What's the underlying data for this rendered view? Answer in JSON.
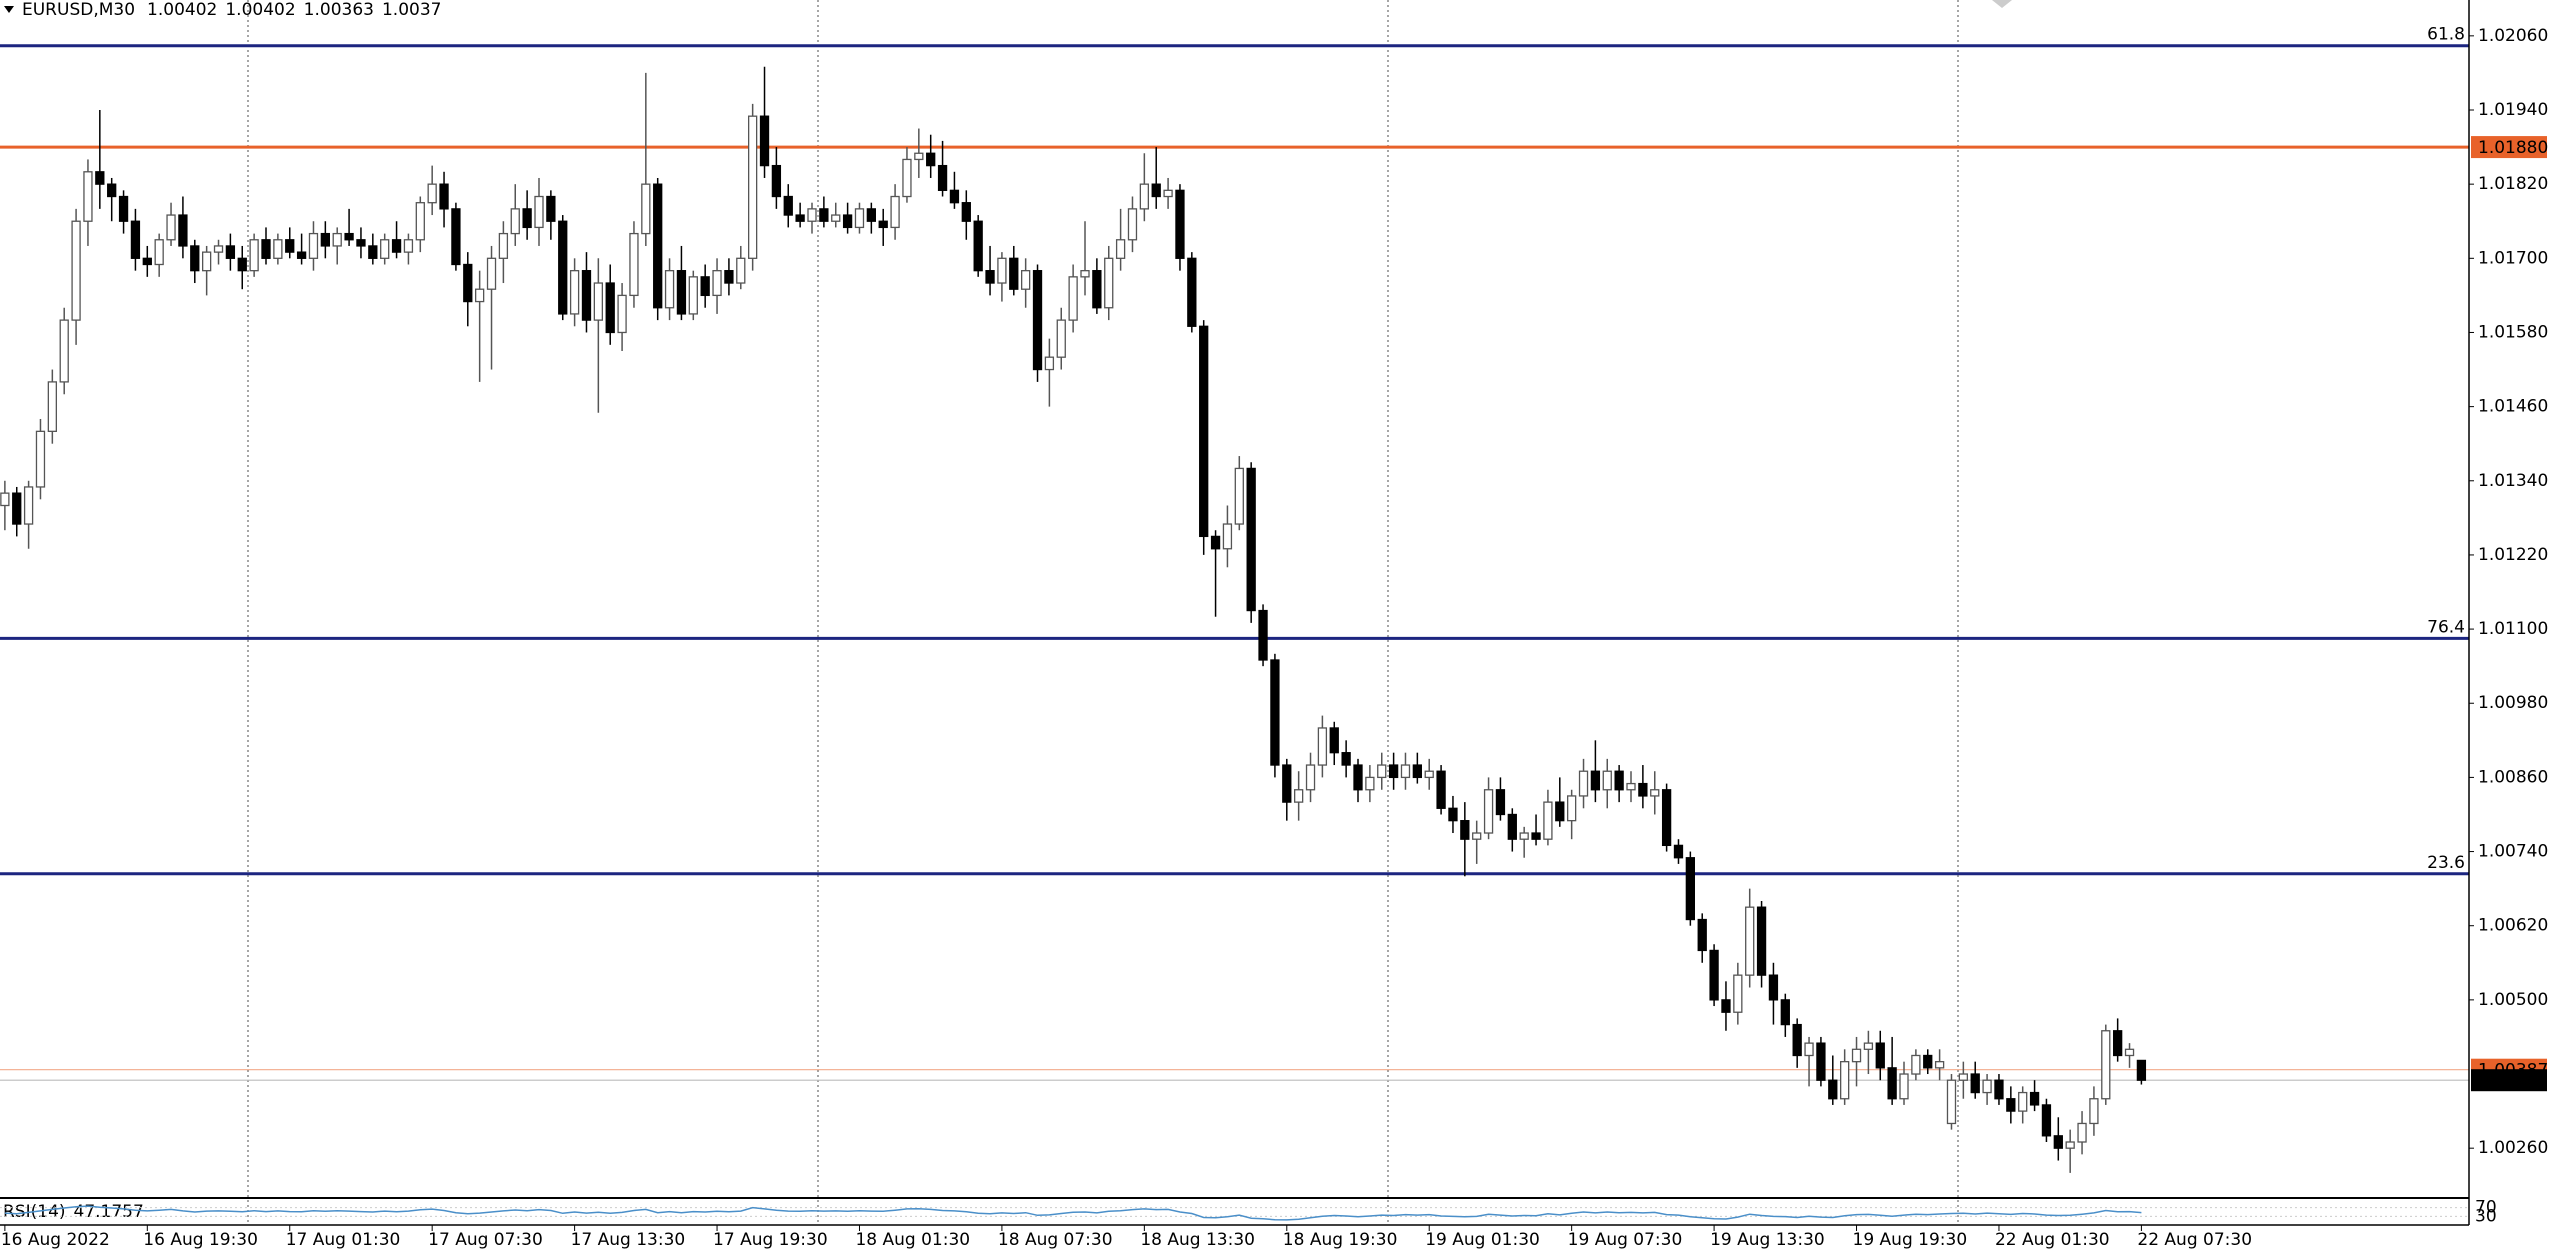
{
  "chart_data": {
    "type": "candlestick",
    "title": "EURUSD,M30",
    "bull_color": "#ffffff",
    "bear_color": "#000000",
    "ohlc": [
      [
        1.013,
        1.0134,
        1.0126,
        1.0132
      ],
      [
        1.0132,
        1.0133,
        1.0125,
        1.0127
      ],
      [
        1.0127,
        1.0134,
        1.0123,
        1.0133
      ],
      [
        1.0133,
        1.0144,
        1.0131,
        1.0142
      ],
      [
        1.0142,
        1.0152,
        1.014,
        1.015
      ],
      [
        1.015,
        1.0162,
        1.0148,
        1.016
      ],
      [
        1.016,
        1.0178,
        1.0156,
        1.0176
      ],
      [
        1.0176,
        1.0186,
        1.0172,
        1.0184
      ],
      [
        1.0184,
        1.0194,
        1.0178,
        1.0182
      ],
      [
        1.0182,
        1.0183,
        1.0176,
        1.018
      ],
      [
        1.018,
        1.0181,
        1.0174,
        1.0176
      ],
      [
        1.0176,
        1.0178,
        1.0168,
        1.017
      ],
      [
        1.017,
        1.0172,
        1.0167,
        1.0169
      ],
      [
        1.0169,
        1.0174,
        1.0167,
        1.0173
      ],
      [
        1.0173,
        1.0179,
        1.0172,
        1.0177
      ],
      [
        1.0177,
        1.018,
        1.017,
        1.0172
      ],
      [
        1.0172,
        1.0173,
        1.0166,
        1.0168
      ],
      [
        1.0168,
        1.0172,
        1.0164,
        1.0171
      ],
      [
        1.0171,
        1.0173,
        1.0169,
        1.0172
      ],
      [
        1.0172,
        1.0174,
        1.0168,
        1.017
      ],
      [
        1.017,
        1.0172,
        1.0165,
        1.0168
      ],
      [
        1.0168,
        1.0174,
        1.0167,
        1.0173
      ],
      [
        1.0173,
        1.0175,
        1.0169,
        1.017
      ],
      [
        1.017,
        1.0174,
        1.0169,
        1.0173
      ],
      [
        1.0173,
        1.0175,
        1.017,
        1.0171
      ],
      [
        1.0171,
        1.0174,
        1.0169,
        1.017
      ],
      [
        1.017,
        1.0176,
        1.0168,
        1.0174
      ],
      [
        1.0174,
        1.0176,
        1.017,
        1.0172
      ],
      [
        1.0172,
        1.0175,
        1.0169,
        1.0174
      ],
      [
        1.0174,
        1.0178,
        1.0172,
        1.0173
      ],
      [
        1.0173,
        1.0175,
        1.017,
        1.0172
      ],
      [
        1.0172,
        1.0174,
        1.0169,
        1.017
      ],
      [
        1.017,
        1.0174,
        1.0169,
        1.0173
      ],
      [
        1.0173,
        1.0176,
        1.017,
        1.0171
      ],
      [
        1.0171,
        1.0174,
        1.0169,
        1.0173
      ],
      [
        1.0173,
        1.018,
        1.0171,
        1.0179
      ],
      [
        1.0179,
        1.0185,
        1.0177,
        1.0182
      ],
      [
        1.0182,
        1.0184,
        1.0175,
        1.0178
      ],
      [
        1.0178,
        1.0179,
        1.0168,
        1.0169
      ],
      [
        1.0169,
        1.0171,
        1.0159,
        1.0163
      ],
      [
        1.0163,
        1.0168,
        1.015,
        1.0165
      ],
      [
        1.0165,
        1.0172,
        1.0152,
        1.017
      ],
      [
        1.017,
        1.0176,
        1.0166,
        1.0174
      ],
      [
        1.0174,
        1.0182,
        1.0172,
        1.0178
      ],
      [
        1.0178,
        1.0181,
        1.0173,
        1.0175
      ],
      [
        1.0175,
        1.0183,
        1.0172,
        1.018
      ],
      [
        1.018,
        1.0181,
        1.0173,
        1.0176
      ],
      [
        1.0176,
        1.0177,
        1.016,
        1.0161
      ],
      [
        1.0161,
        1.017,
        1.0159,
        1.0168
      ],
      [
        1.0168,
        1.0171,
        1.0158,
        1.016
      ],
      [
        1.016,
        1.017,
        1.0145,
        1.0166
      ],
      [
        1.0166,
        1.0169,
        1.0156,
        1.0158
      ],
      [
        1.0158,
        1.0166,
        1.0155,
        1.0164
      ],
      [
        1.0164,
        1.0176,
        1.0162,
        1.0174
      ],
      [
        1.0174,
        1.02,
        1.0172,
        1.0182
      ],
      [
        1.0182,
        1.0183,
        1.016,
        1.0162
      ],
      [
        1.0162,
        1.017,
        1.016,
        1.0168
      ],
      [
        1.0168,
        1.0172,
        1.016,
        1.0161
      ],
      [
        1.0161,
        1.0168,
        1.016,
        1.0167
      ],
      [
        1.0167,
        1.0169,
        1.0162,
        1.0164
      ],
      [
        1.0164,
        1.017,
        1.0161,
        1.0168
      ],
      [
        1.0168,
        1.017,
        1.0164,
        1.0166
      ],
      [
        1.0166,
        1.0172,
        1.0165,
        1.017
      ],
      [
        1.017,
        1.0195,
        1.0168,
        1.0193
      ],
      [
        1.0193,
        1.0201,
        1.0183,
        1.0185
      ],
      [
        1.0185,
        1.0188,
        1.0178,
        1.018
      ],
      [
        1.018,
        1.0182,
        1.0175,
        1.0177
      ],
      [
        1.0177,
        1.0179,
        1.0175,
        1.0176
      ],
      [
        1.0176,
        1.0179,
        1.0174,
        1.0178
      ],
      [
        1.0178,
        1.018,
        1.0175,
        1.0176
      ],
      [
        1.0176,
        1.0179,
        1.0175,
        1.0177
      ],
      [
        1.0177,
        1.0179,
        1.0174,
        1.0175
      ],
      [
        1.0175,
        1.0179,
        1.0174,
        1.0178
      ],
      [
        1.0178,
        1.0179,
        1.0174,
        1.0176
      ],
      [
        1.0176,
        1.0178,
        1.0172,
        1.0175
      ],
      [
        1.0175,
        1.0182,
        1.0173,
        1.018
      ],
      [
        1.018,
        1.0188,
        1.0179,
        1.0186
      ],
      [
        1.0186,
        1.0191,
        1.0183,
        1.0187
      ],
      [
        1.0187,
        1.019,
        1.0183,
        1.0185
      ],
      [
        1.0185,
        1.0189,
        1.018,
        1.0181
      ],
      [
        1.0181,
        1.0184,
        1.0178,
        1.0179
      ],
      [
        1.0179,
        1.0181,
        1.0173,
        1.0176
      ],
      [
        1.0176,
        1.0177,
        1.0167,
        1.0168
      ],
      [
        1.0168,
        1.0172,
        1.0164,
        1.0166
      ],
      [
        1.0166,
        1.0171,
        1.0163,
        1.017
      ],
      [
        1.017,
        1.0172,
        1.0164,
        1.0165
      ],
      [
        1.0165,
        1.017,
        1.0162,
        1.0168
      ],
      [
        1.0168,
        1.0169,
        1.015,
        1.0152
      ],
      [
        1.0152,
        1.0157,
        1.0146,
        1.0154
      ],
      [
        1.0154,
        1.0162,
        1.0152,
        1.016
      ],
      [
        1.016,
        1.0169,
        1.0158,
        1.0167
      ],
      [
        1.0167,
        1.0176,
        1.0164,
        1.0168
      ],
      [
        1.0168,
        1.017,
        1.0161,
        1.0162
      ],
      [
        1.0162,
        1.0172,
        1.016,
        1.017
      ],
      [
        1.017,
        1.0178,
        1.0168,
        1.0173
      ],
      [
        1.0173,
        1.018,
        1.0171,
        1.0178
      ],
      [
        1.0178,
        1.0187,
        1.0176,
        1.0182
      ],
      [
        1.0182,
        1.0188,
        1.0178,
        1.018
      ],
      [
        1.018,
        1.0183,
        1.0178,
        1.0181
      ],
      [
        1.0181,
        1.0182,
        1.0168,
        1.017
      ],
      [
        1.017,
        1.0171,
        1.0158,
        1.0159
      ],
      [
        1.0159,
        1.016,
        1.0122,
        1.0125
      ],
      [
        1.0125,
        1.0126,
        1.0112,
        1.0123
      ],
      [
        1.0123,
        1.013,
        1.012,
        1.0127
      ],
      [
        1.0127,
        1.0138,
        1.0126,
        1.0136
      ],
      [
        1.0136,
        1.0137,
        1.0111,
        1.0113
      ],
      [
        1.0113,
        1.0114,
        1.0104,
        1.0105
      ],
      [
        1.0105,
        1.0106,
        1.0086,
        1.0088
      ],
      [
        1.0088,
        1.0089,
        1.0079,
        1.0082
      ],
      [
        1.0082,
        1.0087,
        1.0079,
        1.0084
      ],
      [
        1.0084,
        1.009,
        1.0082,
        1.0088
      ],
      [
        1.0088,
        1.0096,
        1.0086,
        1.0094
      ],
      [
        1.0094,
        1.0095,
        1.0088,
        1.009
      ],
      [
        1.009,
        1.0092,
        1.0086,
        1.0088
      ],
      [
        1.0088,
        1.0089,
        1.0082,
        1.0084
      ],
      [
        1.0084,
        1.0088,
        1.0082,
        1.0086
      ],
      [
        1.0086,
        1.009,
        1.0084,
        1.0088
      ],
      [
        1.0088,
        1.009,
        1.0084,
        1.0086
      ],
      [
        1.0086,
        1.009,
        1.0084,
        1.0088
      ],
      [
        1.0088,
        1.009,
        1.0085,
        1.0086
      ],
      [
        1.0086,
        1.0089,
        1.0084,
        1.0087
      ],
      [
        1.0087,
        1.0088,
        1.008,
        1.0081
      ],
      [
        1.0081,
        1.0083,
        1.0077,
        1.0079
      ],
      [
        1.0079,
        1.0082,
        1.007,
        1.0076
      ],
      [
        1.0076,
        1.0079,
        1.0072,
        1.0077
      ],
      [
        1.0077,
        1.0086,
        1.0076,
        1.0084
      ],
      [
        1.0084,
        1.0086,
        1.0079,
        1.008
      ],
      [
        1.008,
        1.0081,
        1.0074,
        1.0076
      ],
      [
        1.0076,
        1.0078,
        1.0073,
        1.0077
      ],
      [
        1.0077,
        1.008,
        1.0075,
        1.0076
      ],
      [
        1.0076,
        1.0084,
        1.0075,
        1.0082
      ],
      [
        1.0082,
        1.0086,
        1.0078,
        1.0079
      ],
      [
        1.0079,
        1.0084,
        1.0076,
        1.0083
      ],
      [
        1.0083,
        1.0089,
        1.0081,
        1.0087
      ],
      [
        1.0087,
        1.0092,
        1.0082,
        1.0084
      ],
      [
        1.0084,
        1.0089,
        1.0081,
        1.0087
      ],
      [
        1.0087,
        1.0088,
        1.0082,
        1.0084
      ],
      [
        1.0084,
        1.0087,
        1.0082,
        1.0085
      ],
      [
        1.0085,
        1.0088,
        1.0081,
        1.0083
      ],
      [
        1.0083,
        1.0087,
        1.008,
        1.0084
      ],
      [
        1.0084,
        1.0085,
        1.0074,
        1.0075
      ],
      [
        1.0075,
        1.0076,
        1.0072,
        1.0073
      ],
      [
        1.0073,
        1.0074,
        1.0062,
        1.0063
      ],
      [
        1.0063,
        1.0064,
        1.0056,
        1.0058
      ],
      [
        1.0058,
        1.0059,
        1.0049,
        1.005
      ],
      [
        1.005,
        1.0053,
        1.0045,
        1.0048
      ],
      [
        1.0048,
        1.0056,
        1.0046,
        1.0054
      ],
      [
        1.0054,
        1.0068,
        1.0052,
        1.0065
      ],
      [
        1.0065,
        1.0066,
        1.0052,
        1.0054
      ],
      [
        1.0054,
        1.0056,
        1.0046,
        1.005
      ],
      [
        1.005,
        1.0051,
        1.0044,
        1.0046
      ],
      [
        1.0046,
        1.0047,
        1.0039,
        1.0041
      ],
      [
        1.0041,
        1.0044,
        1.0036,
        1.0043
      ],
      [
        1.0043,
        1.0044,
        1.0036,
        1.0037
      ],
      [
        1.0037,
        1.0041,
        1.0033,
        1.0034
      ],
      [
        1.0034,
        1.0042,
        1.0033,
        1.004
      ],
      [
        1.004,
        1.0044,
        1.0036,
        1.0042
      ],
      [
        1.0042,
        1.0045,
        1.0038,
        1.0043
      ],
      [
        1.0043,
        1.0045,
        1.0037,
        1.0039
      ],
      [
        1.0039,
        1.0044,
        1.0033,
        1.0034
      ],
      [
        1.0034,
        1.004,
        1.0033,
        1.0038
      ],
      [
        1.0038,
        1.0042,
        1.0037,
        1.0041
      ],
      [
        1.0041,
        1.0042,
        1.0038,
        1.0039
      ],
      [
        1.0039,
        1.0042,
        1.0037,
        1.004
      ],
      [
        1.003,
        1.0038,
        1.0029,
        1.0037
      ],
      [
        1.0037,
        1.004,
        1.0034,
        1.0038
      ],
      [
        1.0038,
        1.004,
        1.0034,
        1.0035
      ],
      [
        1.0035,
        1.0038,
        1.0033,
        1.0037
      ],
      [
        1.0037,
        1.0038,
        1.0033,
        1.0034
      ],
      [
        1.0034,
        1.0036,
        1.003,
        1.0032
      ],
      [
        1.0032,
        1.0036,
        1.003,
        1.0035
      ],
      [
        1.0035,
        1.0037,
        1.0032,
        1.0033
      ],
      [
        1.0033,
        1.0034,
        1.0027,
        1.0028
      ],
      [
        1.0028,
        1.0031,
        1.0024,
        1.0026
      ],
      [
        1.0026,
        1.0029,
        1.0022,
        1.0027
      ],
      [
        1.0027,
        1.0032,
        1.0025,
        1.003
      ],
      [
        1.003,
        1.0036,
        1.0028,
        1.0034
      ],
      [
        1.0034,
        1.0046,
        1.0033,
        1.0045
      ],
      [
        1.0045,
        1.0047,
        1.004,
        1.0041
      ],
      [
        1.0041,
        1.0043,
        1.0039,
        1.0042
      ],
      [
        1.00402,
        1.00402,
        1.00363,
        1.0037
      ]
    ],
    "xlim": [
      -0.41,
      207.6
    ],
    "xticks": [
      {
        "value": 0,
        "label": "16 Aug 2022"
      },
      {
        "value": 12,
        "label": "16 Aug 19:30"
      },
      {
        "value": 24,
        "label": "17 Aug 01:30"
      },
      {
        "value": 36,
        "label": "17 Aug 07:30"
      },
      {
        "value": 48,
        "label": "17 Aug 13:30"
      },
      {
        "value": 60,
        "label": "17 Aug 19:30"
      },
      {
        "value": 72,
        "label": "18 Aug 01:30"
      },
      {
        "value": 84,
        "label": "18 Aug 07:30"
      },
      {
        "value": 96,
        "label": "18 Aug 13:30"
      },
      {
        "value": 108,
        "label": "18 Aug 19:30"
      },
      {
        "value": 120,
        "label": "19 Aug 01:30"
      },
      {
        "value": 132,
        "label": "19 Aug 07:30"
      },
      {
        "value": 144,
        "label": "19 Aug 13:30"
      },
      {
        "value": 156,
        "label": "19 Aug 19:30"
      },
      {
        "value": 168,
        "label": "22 Aug 01:30"
      },
      {
        "value": 180,
        "label": "22 Aug 07:30"
      }
    ],
    "ylim": [
      1.00181,
      1.02118
    ],
    "yticks": [
      {
        "value": 1.0206,
        "label": "1.02060"
      },
      {
        "value": 1.0194,
        "label": "1.01940"
      },
      {
        "value": 1.0182,
        "label": "1.01820"
      },
      {
        "value": 1.017,
        "label": "1.01700"
      },
      {
        "value": 1.0158,
        "label": "1.01580"
      },
      {
        "value": 1.0146,
        "label": "1.01460"
      },
      {
        "value": 1.0134,
        "label": "1.01340"
      },
      {
        "value": 1.0122,
        "label": "1.01220"
      },
      {
        "value": 1.011,
        "label": "1.01100"
      },
      {
        "value": 1.0098,
        "label": "1.00980"
      },
      {
        "value": 1.0086,
        "label": "1.00860"
      },
      {
        "value": 1.0074,
        "label": "1.00740"
      },
      {
        "value": 1.0062,
        "label": "1.00620"
      },
      {
        "value": 1.005,
        "label": "1.00500"
      },
      {
        "value": 1.0026,
        "label": "1.00260"
      }
    ],
    "levels": [
      {
        "value": 1.0188,
        "label": "1.01880",
        "color": "#e8622a"
      }
    ],
    "fibo_color": "#1c2580",
    "fibo": [
      {
        "price": 1.02044,
        "label": "61.8"
      },
      {
        "price": 1.01085,
        "label": "76.4"
      },
      {
        "price": 1.00704,
        "label": "23.6"
      }
    ],
    "ask": {
      "value": 1.00387,
      "color": "#e8622a"
    },
    "indicator": {
      "type": "line",
      "title": "RSI(14)",
      "color": "#4a8fc9",
      "ylim": [
        0,
        100
      ],
      "yticks": [
        70,
        30
      ],
      "values": [
        45,
        42,
        48,
        55,
        62,
        68,
        74,
        77,
        72,
        68,
        64,
        58,
        55,
        58,
        62,
        55,
        50,
        54,
        55,
        53,
        51,
        56,
        52,
        55,
        52,
        51,
        56,
        53,
        56,
        54,
        52,
        50,
        54,
        51,
        54,
        60,
        63,
        57,
        47,
        42,
        45,
        50,
        55,
        59,
        56,
        61,
        57,
        44,
        50,
        45,
        49,
        44,
        48,
        57,
        62,
        47,
        52,
        47,
        52,
        50,
        53,
        51,
        54,
        70,
        64,
        58,
        54,
        53,
        56,
        54,
        55,
        53,
        56,
        54,
        53,
        58,
        64,
        65,
        62,
        57,
        55,
        51,
        44,
        42,
        46,
        43,
        47,
        35,
        37,
        43,
        49,
        50,
        46,
        53,
        56,
        61,
        64,
        61,
        62,
        50,
        43,
        25,
        24,
        28,
        36,
        22,
        19,
        15,
        14,
        17,
        24,
        31,
        34,
        32,
        28,
        32,
        36,
        34,
        38,
        36,
        38,
        32,
        30,
        28,
        30,
        40,
        36,
        32,
        34,
        33,
        42,
        37,
        44,
        50,
        46,
        50,
        47,
        48,
        46,
        48,
        38,
        36,
        28,
        24,
        19,
        18,
        27,
        40,
        34,
        30,
        29,
        25,
        31,
        27,
        25,
        33,
        38,
        39,
        35,
        31,
        36,
        40,
        38,
        41,
        43,
        44,
        41,
        45,
        42,
        39,
        43,
        41,
        36,
        34,
        35,
        40,
        46,
        57,
        51,
        52,
        47.1757
      ]
    }
  }
}
